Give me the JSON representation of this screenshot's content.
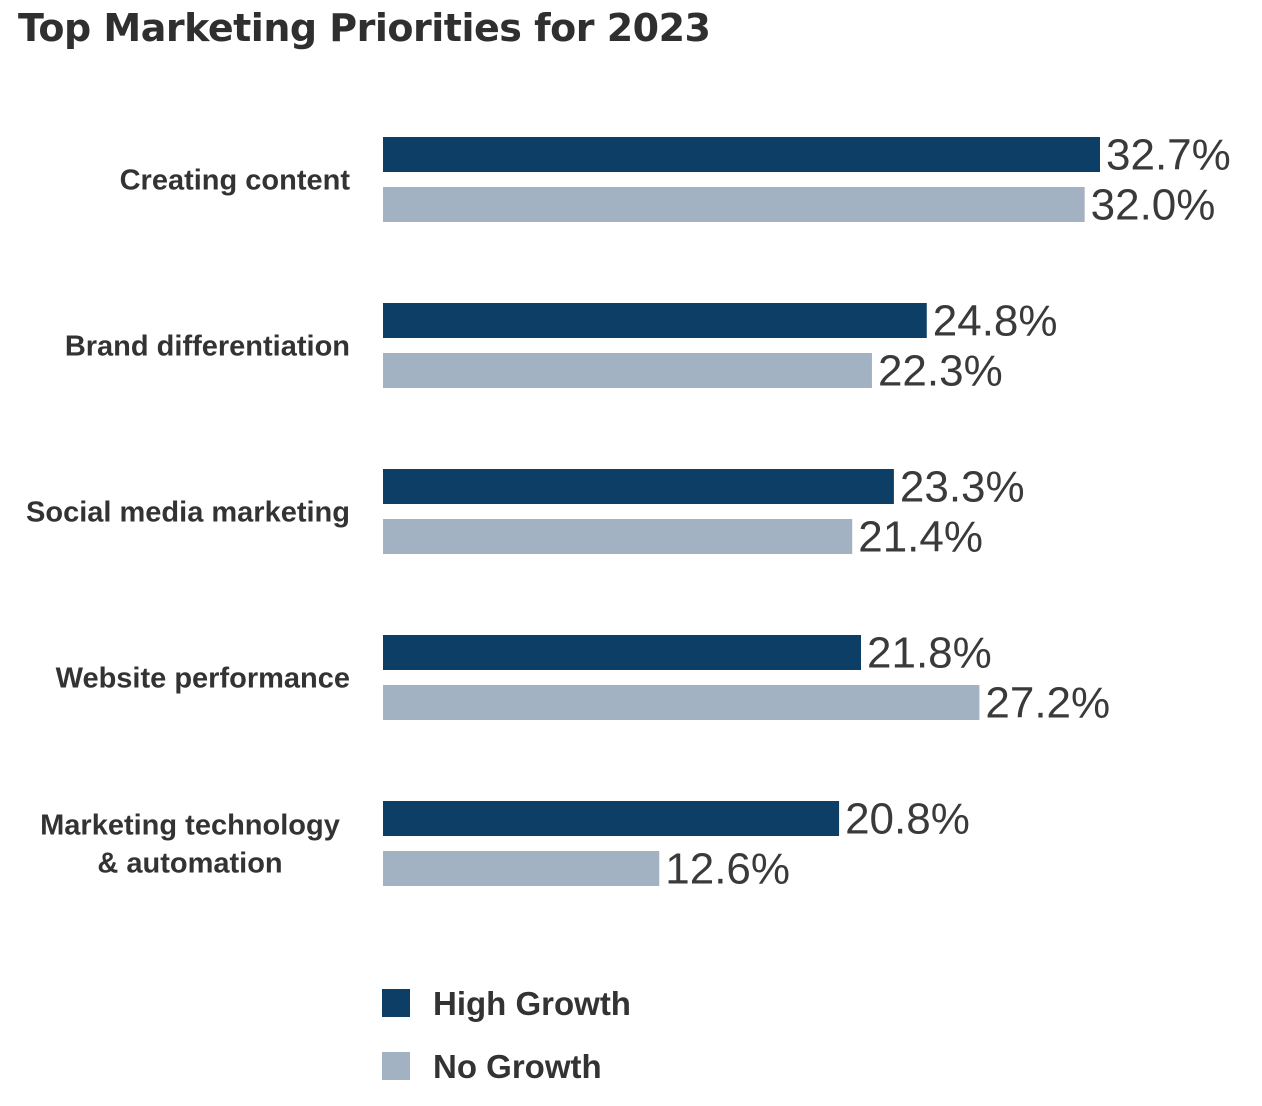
{
  "chart_data": {
    "type": "bar",
    "orientation": "horizontal",
    "title": "Top Marketing Priorities for 2023",
    "categories": [
      [
        "Creating content"
      ],
      [
        "Brand differentiation"
      ],
      [
        "Social media marketing"
      ],
      [
        "Website performance"
      ],
      [
        "Marketing technology",
        "& automation"
      ]
    ],
    "series": [
      {
        "name": "High Growth",
        "color": "#0d3f66",
        "values": [
          32.7,
          24.8,
          23.3,
          21.8,
          20.8
        ],
        "labels": [
          "32.7%",
          "24.8%",
          "23.3%",
          "21.8%",
          "20.8%"
        ]
      },
      {
        "name": "No Growth",
        "color": "#a3b2c2",
        "values": [
          32.0,
          22.3,
          21.4,
          27.2,
          12.6
        ],
        "labels": [
          "32.0%",
          "22.3%",
          "21.4%",
          "27.2%",
          "12.6%"
        ]
      }
    ],
    "xlim": [
      0,
      32.7
    ],
    "grid": false,
    "legend": "bottom"
  }
}
